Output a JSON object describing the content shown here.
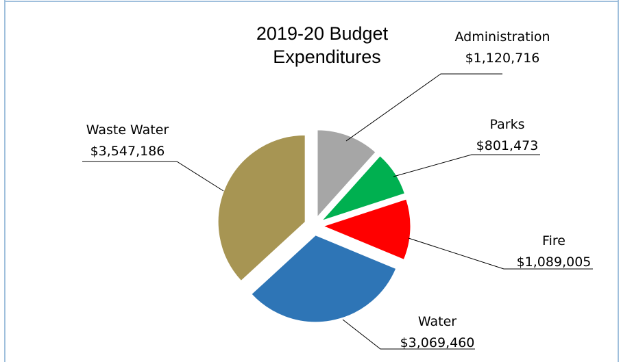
{
  "chart_data": {
    "type": "pie",
    "title": "2019-20 Budget Expenditures",
    "title_lines": [
      "2019-20 Budget",
      "Expenditures"
    ],
    "slices": [
      {
        "name": "Administration",
        "value": 1120716,
        "value_label": "$1,120,716",
        "color": "#a6a6a6"
      },
      {
        "name": "Parks",
        "value": 801473,
        "value_label": "$801,473",
        "color": "#00b050"
      },
      {
        "name": "Fire",
        "value": 1089005,
        "value_label": "$1,089,005",
        "color": "#ff0000"
      },
      {
        "name": "Water",
        "value": 3069460,
        "value_label": "$3,069,460",
        "color": "#2e75b6"
      },
      {
        "name": "Waste Water",
        "value": 3547186,
        "value_label": "$3,547,186",
        "color": "#a79553"
      }
    ],
    "exploded": true,
    "legend": "none"
  }
}
